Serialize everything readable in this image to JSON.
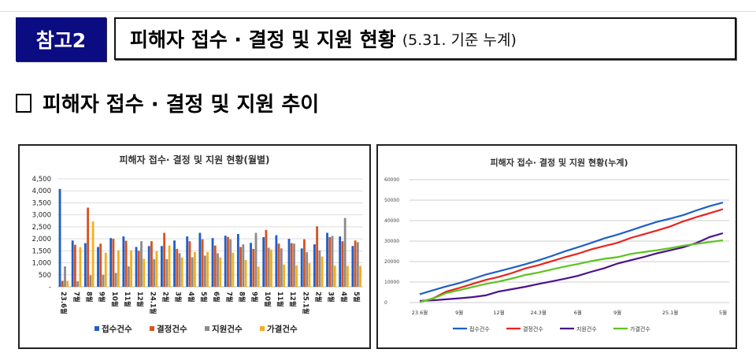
{
  "header": {
    "badge": "참고2",
    "title": "피해자 접수 · 결정 및 지원 현황",
    "title_note": "(5.31. 기준 누계)"
  },
  "section": {
    "heading": "피해자 접수 · 결정 및 지원 추이"
  },
  "colors": {
    "badge_bg": "#0b0b82"
  },
  "chart_data": [
    {
      "type": "bar",
      "title": "피해자 접수· 결정 및 지원 현황(월별)",
      "categories": [
        "23.6월",
        "7월",
        "8월",
        "9월",
        "10월",
        "11월",
        "12월",
        "24.1월",
        "2월",
        "3월",
        "4월",
        "5월",
        "6월",
        "7월",
        "8월",
        "9월",
        "10월",
        "11월",
        "12월",
        "25.1월",
        "2월",
        "3월",
        "4월",
        "5월"
      ],
      "ylim": [
        0,
        4500
      ],
      "yticks": [
        "-",
        "500",
        "1,000",
        "1,500",
        "2,000",
        "2,500",
        "3,000",
        "3,500",
        "4,000",
        "4,500"
      ],
      "grid": true,
      "legend": "bottom",
      "series": [
        {
          "name": "접수건수",
          "color": "#1f5fc8",
          "values": [
            4080,
            1930,
            1820,
            1660,
            2030,
            2100,
            1660,
            1700,
            1700,
            1930,
            2100,
            2250,
            2030,
            2130,
            2200,
            1830,
            2070,
            2150,
            2000,
            1600,
            1770,
            2250,
            2100,
            1700
          ]
        },
        {
          "name": "결정건수",
          "color": "#d9531e",
          "values": [
            250,
            1750,
            3300,
            1800,
            2000,
            1920,
            1500,
            1900,
            2250,
            1580,
            1900,
            1980,
            1720,
            2080,
            1660,
            1580,
            2370,
            1800,
            1820,
            1980,
            2520,
            2070,
            1900,
            1930
          ]
        },
        {
          "name": "지원건수",
          "color": "#8c8c8c",
          "values": [
            850,
            230,
            480,
            500,
            580,
            850,
            1900,
            1150,
            1150,
            1400,
            1230,
            1300,
            1400,
            1980,
            1770,
            2250,
            1630,
            1600,
            1800,
            1440,
            1520,
            2120,
            2870,
            1860
          ]
        },
        {
          "name": "가결건수",
          "color": "#f2b01e",
          "values": [
            250,
            1650,
            2720,
            1420,
            1520,
            1520,
            1170,
            1480,
            1720,
            1220,
            1450,
            1450,
            1220,
            1420,
            1120,
            840,
            1550,
            930,
            890,
            980,
            1260,
            880,
            870,
            870
          ]
        }
      ]
    },
    {
      "type": "line",
      "title": "피해자 접수· 결정 및 지원 현황(누계)",
      "xticks": [
        {
          "index": 0,
          "label": "23.6월"
        },
        {
          "index": 3,
          "label": "9월"
        },
        {
          "index": 6,
          "label": "12월"
        },
        {
          "index": 9,
          "label": "24.3월"
        },
        {
          "index": 12,
          "label": "6월"
        },
        {
          "index": 15,
          "label": "9월"
        },
        {
          "index": 19,
          "label": "25.1월"
        },
        {
          "index": 23,
          "label": "5월"
        }
      ],
      "ylim": [
        0,
        60000
      ],
      "yticks": [
        "0",
        "10000",
        "20000",
        "30000",
        "40000",
        "50000",
        "60000"
      ],
      "grid": true,
      "legend": "bottom",
      "series": [
        {
          "name": "접수건수",
          "color": "#1f5fc8",
          "values": [
            4080,
            6010,
            7830,
            9490,
            11520,
            13620,
            15280,
            16980,
            18680,
            20610,
            22710,
            24960,
            26990,
            29120,
            31320,
            33150,
            35220,
            37370,
            39370,
            40970,
            42740,
            44990,
            47090,
            48790
          ]
        },
        {
          "name": "결정건수",
          "color": "#e8231e",
          "values": [
            250,
            2000,
            5300,
            7100,
            9100,
            11020,
            12520,
            14420,
            16670,
            18250,
            20150,
            22130,
            23850,
            25930,
            27590,
            29170,
            31540,
            33340,
            35160,
            37140,
            39660,
            41730,
            43630,
            45560
          ]
        },
        {
          "name": "지원건수",
          "color": "#4b128c",
          "values": [
            850,
            1080,
            1560,
            2060,
            2640,
            3490,
            5390,
            6540,
            7690,
            9090,
            10320,
            11620,
            13020,
            15000,
            16770,
            19020,
            20650,
            22250,
            24050,
            25490,
            27010,
            29130,
            32000,
            33860
          ]
        },
        {
          "name": "가결건수",
          "color": "#5cc41e",
          "values": [
            250,
            1900,
            4620,
            6040,
            7560,
            9080,
            10250,
            11730,
            13450,
            14670,
            16120,
            17570,
            18790,
            20210,
            21330,
            22170,
            23720,
            24650,
            25540,
            26520,
            27780,
            28660,
            29530,
            30400
          ]
        }
      ]
    }
  ]
}
